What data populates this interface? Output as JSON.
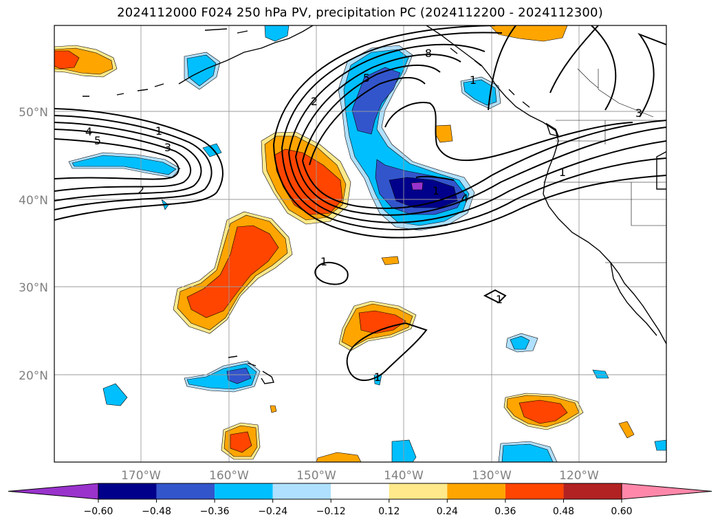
{
  "title": "2024112000 F024 250 hPa PV, precipitation PC (2024112200 - 2024112300)",
  "latitude_labels": [
    "50°N",
    "40°N",
    "30°N",
    "20°N"
  ],
  "longitude_labels": [
    "170°W",
    "160°W",
    "150°W",
    "140°W",
    "130°W",
    "120°W"
  ],
  "colorbar": {
    "tick_labels": [
      "−0.60",
      "−0.48",
      "−0.36",
      "−0.24",
      "−0.12",
      "0.12",
      "0.24",
      "0.36",
      "0.48",
      "0.60"
    ],
    "colors": [
      "#9933cc",
      "#00008b",
      "#3355cc",
      "#00bfff",
      "#b0e0ff",
      "#ffffff",
      "#ffe98a",
      "#ffa500",
      "#ff4500",
      "#b22222",
      "#ff88aa"
    ]
  },
  "contour_labels": [
    {
      "text": "1"
    },
    {
      "text": "3"
    },
    {
      "text": "4"
    },
    {
      "text": "5"
    },
    {
      "text": "2"
    },
    {
      "text": "2"
    },
    {
      "text": "5"
    },
    {
      "text": "8"
    },
    {
      "text": "1"
    },
    {
      "text": "3"
    },
    {
      "text": "1"
    },
    {
      "text": "4"
    },
    {
      "text": "1"
    },
    {
      "text": "1"
    },
    {
      "text": "1"
    },
    {
      "text": "1"
    }
  ]
}
